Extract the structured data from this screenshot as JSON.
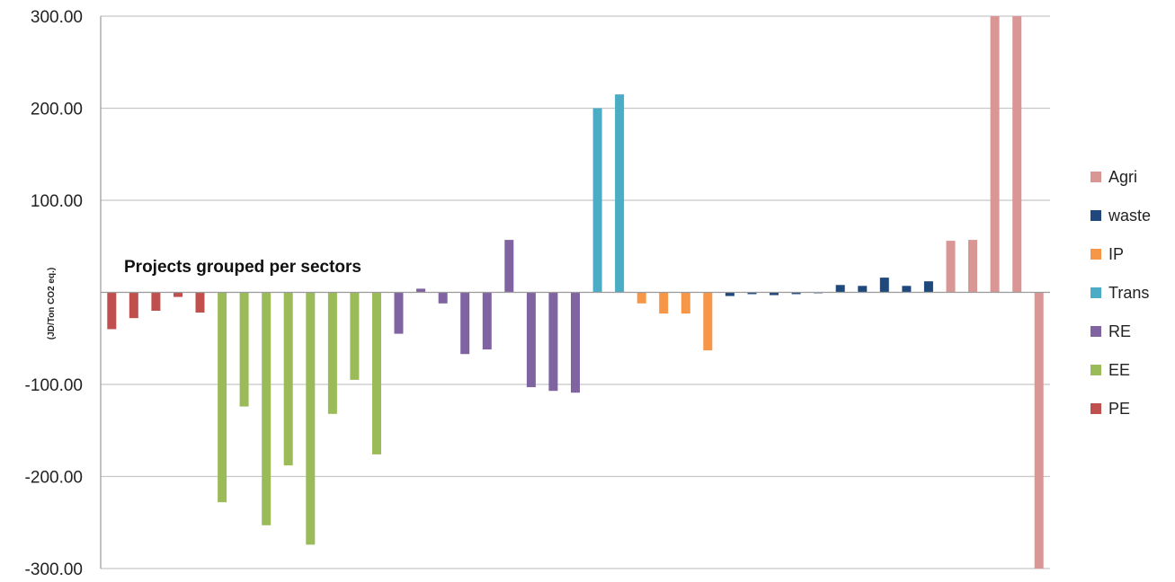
{
  "chart_data": {
    "type": "bar",
    "title": "",
    "ylabel": "(JD/Ton CO2 eq.)",
    "annotation": "Projects grouped per sectors",
    "ylim": [
      -300,
      300
    ],
    "yticks": [
      "300.00",
      "200.00",
      "100.00",
      "-100.00",
      "-200.00",
      "-300.00"
    ],
    "ytick_values": [
      300,
      200,
      100,
      -100,
      -200,
      -300
    ],
    "grid": true,
    "legend_position": "right",
    "legend": [
      "Agri",
      "waste",
      "IP",
      "Trans",
      "RE",
      "EE",
      "PE"
    ],
    "series": [
      {
        "name": "PE",
        "color": "#c0504d",
        "values": [
          -40,
          -28,
          -20,
          -5,
          -22
        ]
      },
      {
        "name": "EE",
        "color": "#9bbb59",
        "values": [
          -228,
          -124,
          -253,
          -188,
          -274,
          -132,
          -95,
          -176
        ]
      },
      {
        "name": "RE",
        "color": "#8064a2",
        "values": [
          -45,
          4,
          -12,
          -67,
          -62,
          57,
          -103,
          -107,
          -109
        ]
      },
      {
        "name": "Trans",
        "color": "#4bacc6",
        "values": [
          200,
          215
        ]
      },
      {
        "name": "IP",
        "color": "#f79646",
        "values": [
          -12,
          -23,
          -23,
          -63
        ]
      },
      {
        "name": "waste",
        "color": "#1f497d",
        "values": [
          -4,
          -2,
          -3,
          -2,
          -1,
          8,
          7,
          16,
          7,
          12
        ]
      },
      {
        "name": "Agri",
        "color": "#d99694",
        "values": [
          56,
          57,
          300,
          300,
          -300
        ]
      }
    ]
  }
}
